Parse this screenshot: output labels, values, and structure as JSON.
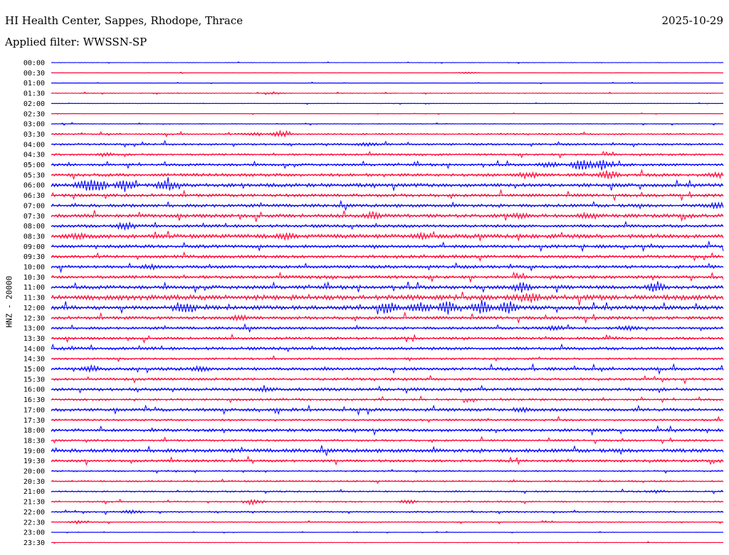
{
  "header": {
    "station": "HI Health Center, Sappes, Rhodope, Thrace",
    "date": "2025-10-29",
    "filter": "Applied filter: WWSSN-SP"
  },
  "channel_label": "HNZ - 20000",
  "colors": {
    "even_row": "#0000ff",
    "odd_row": "#ff0033"
  },
  "chart_data": {
    "type": "helicorder",
    "title": "HI Health Center, Sappes, Rhodope, Thrace",
    "ylabel": "HNZ - 20000",
    "xlabel": "",
    "row_interval_minutes": 30,
    "rows": [
      {
        "time": "00:00",
        "activity": 0.05,
        "events": []
      },
      {
        "time": "00:30",
        "activity": 0.05,
        "events": [
          {
            "pos": 0.62,
            "amp": 0.15
          }
        ]
      },
      {
        "time": "01:00",
        "activity": 0.05,
        "events": []
      },
      {
        "time": "01:30",
        "activity": 0.08,
        "events": [
          {
            "pos": 0.33,
            "amp": 0.2
          }
        ]
      },
      {
        "time": "02:00",
        "activity": 0.05,
        "events": []
      },
      {
        "time": "02:30",
        "activity": 0.05,
        "events": []
      },
      {
        "time": "03:00",
        "activity": 0.08,
        "events": []
      },
      {
        "time": "03:30",
        "activity": 0.15,
        "events": [
          {
            "pos": 0.3,
            "amp": 0.3
          },
          {
            "pos": 0.34,
            "amp": 0.55
          }
        ]
      },
      {
        "time": "04:00",
        "activity": 0.2,
        "events": [
          {
            "pos": 0.47,
            "amp": 0.3
          }
        ]
      },
      {
        "time": "04:30",
        "activity": 0.2,
        "events": [
          {
            "pos": 0.08,
            "amp": 0.3
          }
        ]
      },
      {
        "time": "05:00",
        "activity": 0.25,
        "events": [
          {
            "pos": 0.74,
            "amp": 0.5
          },
          {
            "pos": 0.79,
            "amp": 1.2
          },
          {
            "pos": 0.82,
            "amp": 0.9
          }
        ]
      },
      {
        "time": "05:30",
        "activity": 0.3,
        "events": [
          {
            "pos": 0.71,
            "amp": 0.6
          },
          {
            "pos": 0.83,
            "amp": 0.8
          },
          {
            "pos": 0.99,
            "amp": 0.5
          }
        ]
      },
      {
        "time": "06:00",
        "activity": 0.35,
        "events": [
          {
            "pos": 0.05,
            "amp": 1.0
          },
          {
            "pos": 0.07,
            "amp": 1.0
          },
          {
            "pos": 0.11,
            "amp": 1.1
          },
          {
            "pos": 0.17,
            "amp": 1.2
          }
        ]
      },
      {
        "time": "06:30",
        "activity": 0.3,
        "events": []
      },
      {
        "time": "07:00",
        "activity": 0.3,
        "events": [
          {
            "pos": 0.99,
            "amp": 0.5
          }
        ]
      },
      {
        "time": "07:30",
        "activity": 0.35,
        "events": [
          {
            "pos": 0.48,
            "amp": 0.6
          },
          {
            "pos": 0.7,
            "amp": 0.5
          },
          {
            "pos": 0.8,
            "amp": 0.5
          }
        ]
      },
      {
        "time": "08:00",
        "activity": 0.3,
        "events": [
          {
            "pos": 0.11,
            "amp": 0.8
          }
        ]
      },
      {
        "time": "08:30",
        "activity": 0.4,
        "events": [
          {
            "pos": 0.04,
            "amp": 0.4
          },
          {
            "pos": 0.35,
            "amp": 0.4
          },
          {
            "pos": 0.55,
            "amp": 0.5
          }
        ]
      },
      {
        "time": "09:00",
        "activity": 0.3,
        "events": []
      },
      {
        "time": "09:30",
        "activity": 0.3,
        "events": []
      },
      {
        "time": "10:00",
        "activity": 0.3,
        "events": [
          {
            "pos": 0.15,
            "amp": 0.4
          }
        ]
      },
      {
        "time": "10:30",
        "activity": 0.3,
        "events": []
      },
      {
        "time": "11:00",
        "activity": 0.35,
        "events": [
          {
            "pos": 0.7,
            "amp": 0.9
          },
          {
            "pos": 0.9,
            "amp": 1.0
          }
        ]
      },
      {
        "time": "11:30",
        "activity": 0.5,
        "events": [
          {
            "pos": 0.71,
            "amp": 0.8
          }
        ]
      },
      {
        "time": "12:00",
        "activity": 0.4,
        "events": [
          {
            "pos": 0.2,
            "amp": 0.8
          },
          {
            "pos": 0.5,
            "amp": 1.2
          },
          {
            "pos": 0.55,
            "amp": 1.1
          },
          {
            "pos": 0.59,
            "amp": 1.2
          },
          {
            "pos": 0.64,
            "amp": 1.3
          },
          {
            "pos": 0.68,
            "amp": 1.2
          }
        ]
      },
      {
        "time": "12:30",
        "activity": 0.3,
        "events": [
          {
            "pos": 0.28,
            "amp": 0.4
          }
        ]
      },
      {
        "time": "13:00",
        "activity": 0.25,
        "events": [
          {
            "pos": 0.75,
            "amp": 0.4
          },
          {
            "pos": 0.86,
            "amp": 0.4
          }
        ]
      },
      {
        "time": "13:30",
        "activity": 0.25,
        "events": []
      },
      {
        "time": "14:00",
        "activity": 0.3,
        "events": []
      },
      {
        "time": "14:30",
        "activity": 0.2,
        "events": []
      },
      {
        "time": "15:00",
        "activity": 0.3,
        "events": [
          {
            "pos": 0.06,
            "amp": 0.5
          },
          {
            "pos": 0.22,
            "amp": 0.4
          }
        ]
      },
      {
        "time": "15:30",
        "activity": 0.25,
        "events": []
      },
      {
        "time": "16:00",
        "activity": 0.3,
        "events": [
          {
            "pos": 0.32,
            "amp": 0.3
          }
        ]
      },
      {
        "time": "16:30",
        "activity": 0.2,
        "events": []
      },
      {
        "time": "17:00",
        "activity": 0.3,
        "events": [
          {
            "pos": 0.7,
            "amp": 0.4
          }
        ]
      },
      {
        "time": "17:30",
        "activity": 0.2,
        "events": []
      },
      {
        "time": "18:00",
        "activity": 0.3,
        "events": []
      },
      {
        "time": "18:30",
        "activity": 0.2,
        "events": []
      },
      {
        "time": "19:00",
        "activity": 0.35,
        "events": []
      },
      {
        "time": "19:30",
        "activity": 0.25,
        "events": []
      },
      {
        "time": "20:00",
        "activity": 0.15,
        "events": []
      },
      {
        "time": "20:30",
        "activity": 0.15,
        "events": []
      },
      {
        "time": "21:00",
        "activity": 0.15,
        "events": [
          {
            "pos": 0.9,
            "amp": 0.3
          }
        ]
      },
      {
        "time": "21:30",
        "activity": 0.15,
        "events": [
          {
            "pos": 0.3,
            "amp": 0.5
          },
          {
            "pos": 0.53,
            "amp": 0.4
          }
        ]
      },
      {
        "time": "22:00",
        "activity": 0.15,
        "events": [
          {
            "pos": 0.12,
            "amp": 0.35
          }
        ]
      },
      {
        "time": "22:30",
        "activity": 0.1,
        "events": [
          {
            "pos": 0.04,
            "amp": 0.3
          }
        ]
      },
      {
        "time": "23:00",
        "activity": 0.05,
        "events": []
      },
      {
        "time": "23:30",
        "activity": 0.05,
        "events": []
      }
    ]
  }
}
